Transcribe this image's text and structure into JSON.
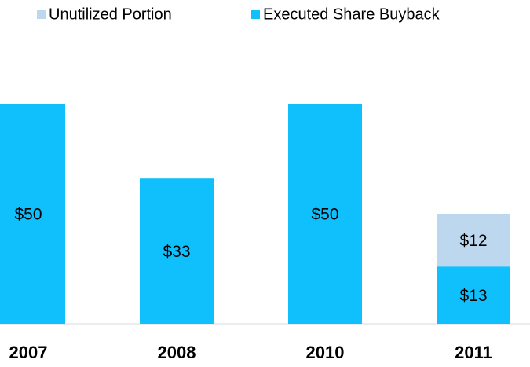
{
  "chart_data": {
    "type": "stacked_bar",
    "categories": [
      "2007",
      "2008",
      "2010",
      "2011"
    ],
    "series": [
      {
        "name": "Unutilized Portion",
        "color": "#bdd7ee",
        "values": [
          null,
          null,
          null,
          12
        ],
        "value_labels": [
          null,
          null,
          null,
          "$12"
        ]
      },
      {
        "name": "Executed Share Buyback",
        "color": "#10c0fc",
        "values": [
          50,
          33,
          50,
          13
        ],
        "value_labels": [
          "$50",
          "$33",
          "$50",
          "$13"
        ]
      }
    ]
  }
}
